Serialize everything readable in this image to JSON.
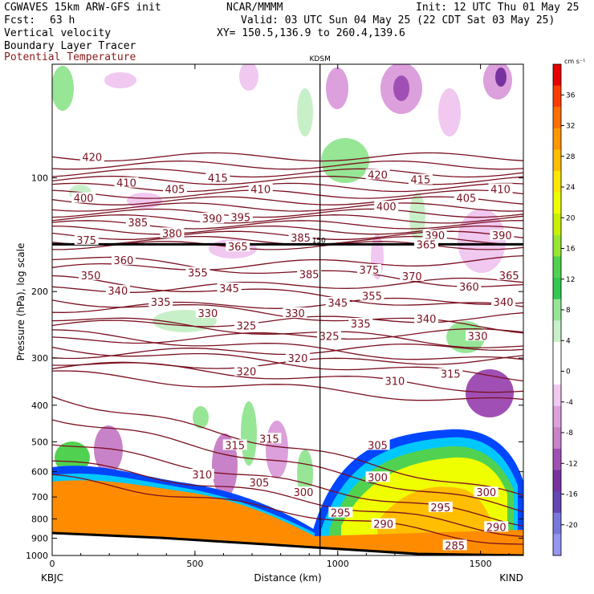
{
  "header": {
    "model": "CGWAVES 15km ARW-GFS init",
    "org": "NCAR/MMMM",
    "init": "Init: 12 UTC Thu 01 May 25",
    "fcst_label": "Fcst:",
    "fcst_value": "63 h",
    "valid": "Valid: 03 UTC Sun 04 May 25 (22 CDT Sat 03 May 25)",
    "xy": "XY= 150.5,136.9 to 260.4,139.6",
    "field1": "Vertical velocity",
    "field2": "Boundary Layer Tracer",
    "field3": "Potential Temperature"
  },
  "colors": {
    "theta": "#7a1020",
    "title_theta": "#8b1a1a",
    "terrain": "#ff8c00"
  },
  "chart_data": {
    "type": "heatmap",
    "subtype": "vertical cross-section",
    "xlabel": "Distance (km)",
    "ylabel": "Pressure (hPa), log scale",
    "xlim": [
      0,
      1650
    ],
    "ylim": [
      1000,
      50
    ],
    "y_scale": "log",
    "x_ticks": [
      0,
      500,
      1000,
      1500
    ],
    "y_ticks": [
      100,
      200,
      300,
      400,
      500,
      600,
      700,
      800,
      900,
      1000
    ],
    "left_station": "KBJC",
    "right_station": "KIND",
    "mid_station": "KDSM",
    "mid_station_km": 938,
    "tropopause_label": "150",
    "tropopause_hpa": 150,
    "colorbar": {
      "unit": "cm s⁻¹",
      "ticks": [
        36,
        32,
        28,
        24,
        20,
        16,
        12,
        8,
        4,
        0,
        -4,
        -8,
        -12,
        -16,
        -20
      ],
      "colors": [
        "#e60000",
        "#ff3c00",
        "#ff6e00",
        "#ff9600",
        "#ffbe00",
        "#ffe600",
        "#f0ff00",
        "#c8f000",
        "#96e632",
        "#50d250",
        "#32c850",
        "#96e696",
        "#c8f0c8",
        "#ffffff",
        "#ffffff",
        "#f0c8f0",
        "#dca0dc",
        "#c882c8",
        "#a050b4",
        "#7832a0",
        "#6446b4",
        "#7878dc",
        "#9696f0"
      ]
    },
    "theta_labels": [
      {
        "v": "420",
        "x": 140,
        "p": 88
      },
      {
        "v": "400",
        "x": 110,
        "p": 113
      },
      {
        "v": "410",
        "x": 260,
        "p": 103
      },
      {
        "v": "405",
        "x": 430,
        "p": 107
      },
      {
        "v": "415",
        "x": 580,
        "p": 100
      },
      {
        "v": "410",
        "x": 730,
        "p": 107
      },
      {
        "v": "420",
        "x": 1140,
        "p": 98
      },
      {
        "v": "415",
        "x": 1290,
        "p": 101
      },
      {
        "v": "410",
        "x": 1570,
        "p": 107
      },
      {
        "v": "405",
        "x": 1450,
        "p": 113
      },
      {
        "v": "400",
        "x": 1170,
        "p": 119
      },
      {
        "v": "395",
        "x": 660,
        "p": 127
      },
      {
        "v": "390",
        "x": 560,
        "p": 128
      },
      {
        "v": "385",
        "x": 300,
        "p": 131
      },
      {
        "v": "380",
        "x": 420,
        "p": 140
      },
      {
        "v": "375",
        "x": 120,
        "p": 146
      },
      {
        "v": "390",
        "x": 1340,
        "p": 142
      },
      {
        "v": "390",
        "x": 1575,
        "p": 142
      },
      {
        "v": "385",
        "x": 870,
        "p": 144
      },
      {
        "v": "365",
        "x": 1310,
        "p": 150
      },
      {
        "v": "365",
        "x": 650,
        "p": 152
      },
      {
        "v": "360",
        "x": 250,
        "p": 165
      },
      {
        "v": "355",
        "x": 510,
        "p": 178
      },
      {
        "v": "350",
        "x": 135,
        "p": 181
      },
      {
        "v": "385",
        "x": 900,
        "p": 180
      },
      {
        "v": "375",
        "x": 1110,
        "p": 175
      },
      {
        "v": "370",
        "x": 1260,
        "p": 182
      },
      {
        "v": "360",
        "x": 1460,
        "p": 194
      },
      {
        "v": "365",
        "x": 1600,
        "p": 181
      },
      {
        "v": "345",
        "x": 620,
        "p": 196
      },
      {
        "v": "340",
        "x": 230,
        "p": 199
      },
      {
        "v": "355",
        "x": 1120,
        "p": 205
      },
      {
        "v": "335",
        "x": 380,
        "p": 213
      },
      {
        "v": "345",
        "x": 1000,
        "p": 214
      },
      {
        "v": "340",
        "x": 1580,
        "p": 213
      },
      {
        "v": "330",
        "x": 545,
        "p": 228
      },
      {
        "v": "330",
        "x": 850,
        "p": 228
      },
      {
        "v": "335",
        "x": 1080,
        "p": 243
      },
      {
        "v": "340",
        "x": 1310,
        "p": 236
      },
      {
        "v": "325",
        "x": 680,
        "p": 246
      },
      {
        "v": "325",
        "x": 970,
        "p": 262
      },
      {
        "v": "330",
        "x": 1490,
        "p": 262
      },
      {
        "v": "320",
        "x": 860,
        "p": 300
      },
      {
        "v": "320",
        "x": 680,
        "p": 325
      },
      {
        "v": "310",
        "x": 1200,
        "p": 345
      },
      {
        "v": "315",
        "x": 1395,
        "p": 330
      },
      {
        "v": "315",
        "x": 760,
        "p": 490
      },
      {
        "v": "315",
        "x": 640,
        "p": 510
      },
      {
        "v": "305",
        "x": 1140,
        "p": 510
      },
      {
        "v": "310",
        "x": 525,
        "p": 610
      },
      {
        "v": "305",
        "x": 725,
        "p": 640
      },
      {
        "v": "300",
        "x": 880,
        "p": 680
      },
      {
        "v": "300",
        "x": 1140,
        "p": 620
      },
      {
        "v": "300",
        "x": 1520,
        "p": 680
      },
      {
        "v": "295",
        "x": 1010,
        "p": 770
      },
      {
        "v": "295",
        "x": 1360,
        "p": 745
      },
      {
        "v": "290",
        "x": 1160,
        "p": 825
      },
      {
        "v": "290",
        "x": 1555,
        "p": 840
      },
      {
        "v": "285",
        "x": 1410,
        "p": 940
      }
    ]
  }
}
